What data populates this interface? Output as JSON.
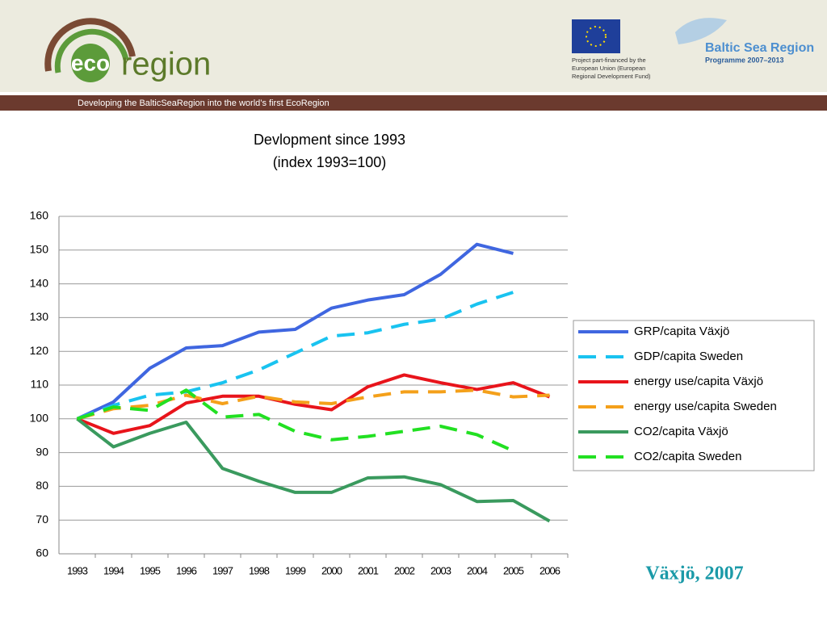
{
  "header": {
    "logo": [
      "eco",
      "region"
    ],
    "eu_note": [
      "Project part-financed by the",
      "European Union (European",
      "Regional Development Fund)"
    ],
    "programme": "Baltic Sea Region",
    "programme_years": "Programme 2007–2013",
    "tagline": "Developing the BalticSeaRegion into the world’s first EcoRegion"
  },
  "caption": "Växjö, 2007",
  "chart_data": {
    "type": "line",
    "title": "Devlopment since 1993",
    "subtitle": "(index 1993=100)",
    "categories": [
      "1993",
      "1994",
      "1995",
      "1996",
      "1997",
      "1998",
      "1999",
      "2000",
      "2001",
      "2002",
      "2003",
      "2004",
      "2005",
      "2006"
    ],
    "series": [
      {
        "name": "GRP/capita Växjö",
        "color": "#3f66e0",
        "dashed": false,
        "values": [
          100,
          105,
          115,
          121,
          121.7,
          125.7,
          126.5,
          132.8,
          135.2,
          136.8,
          142.8,
          151.7,
          149,
          null
        ]
      },
      {
        "name": "GDP/capita Sweden",
        "color": "#19c3f0",
        "dashed": true,
        "values": [
          100,
          104,
          107,
          108,
          110.7,
          114.5,
          119.5,
          124.5,
          125.5,
          128,
          129.5,
          134,
          137.5,
          null
        ]
      },
      {
        "name": "energy use/capita Växjö",
        "color": "#e8141b",
        "dashed": false,
        "values": [
          100,
          95.7,
          98,
          104.7,
          106.7,
          106.7,
          104.3,
          102.7,
          109.5,
          113,
          110.7,
          108.7,
          110.7,
          106.5
        ]
      },
      {
        "name": "energy use/capita Sweden",
        "color": "#f4a01a",
        "dashed": true,
        "values": [
          100,
          103,
          104,
          107,
          104.5,
          106.7,
          105,
          104.5,
          106.5,
          108,
          108,
          108.5,
          106.5,
          107
        ]
      },
      {
        "name": "CO2/capita Växjö",
        "color": "#3a9a5e",
        "dashed": false,
        "values": [
          100,
          91.7,
          95.7,
          99,
          85.3,
          81.5,
          78.2,
          78.2,
          82.5,
          82.8,
          80.5,
          75.5,
          75.8,
          69.7
        ]
      },
      {
        "name": "CO2/capita Sweden",
        "color": "#22e022",
        "dashed": true,
        "values": [
          100,
          103.5,
          102.5,
          108.5,
          100.5,
          101.3,
          96.3,
          93.8,
          94.8,
          96.3,
          97.8,
          95.3,
          90.5,
          null
        ]
      }
    ],
    "ylim": [
      60,
      160
    ],
    "yticks": [
      60,
      70,
      80,
      90,
      100,
      110,
      120,
      130,
      140,
      150,
      160
    ],
    "grid": true,
    "legend": "right"
  }
}
